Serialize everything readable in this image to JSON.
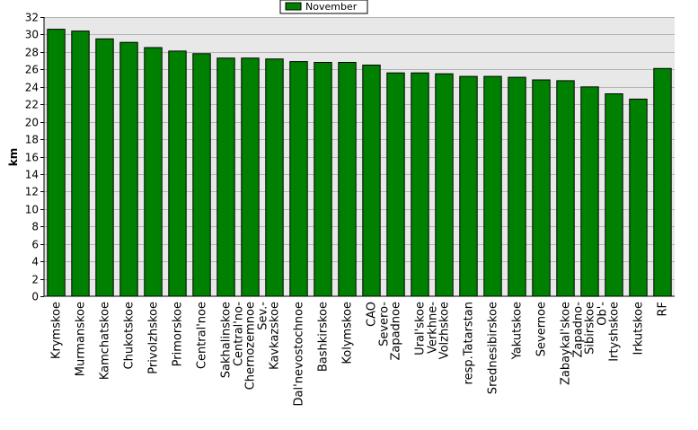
{
  "chart_data": {
    "type": "bar",
    "ylabel": "km",
    "ylim": [
      0,
      32
    ],
    "ytick_step": 2,
    "grid": true,
    "legend_position": "top-center",
    "plot_background": "#e8e8e8",
    "bar_color": "#008000",
    "categories": [
      "Krymskoe",
      "Murmanskoe",
      "Kamchatskoe",
      "Chukotskoe",
      "Privolzhskoe",
      "Primorskoe",
      "Central'noe",
      "Sakhalinskoe",
      "Central'no-Chernozemnoe",
      "Sev.-Kavkazskoe",
      "Dal'nevostochnoe",
      "Bashkirskoe",
      "Kolymskoe",
      "CAO",
      "Severo-Zapadnoe",
      "Ural'skoe",
      "Verkhne-Volzhskoe",
      "resp.Tatarstan",
      "Srednesibirskoe",
      "Yakutskoe",
      "Severnoe",
      "Zabaykal'skoe",
      "Zapadno-Sibirskoe",
      "Ob'-Irtyshskoe",
      "Irkutskoe",
      "RF"
    ],
    "category_lines": [
      [
        "Krymskoe"
      ],
      [
        "Murmanskoe"
      ],
      [
        "Kamchatskoe"
      ],
      [
        "Chukotskoe"
      ],
      [
        "Privolzhskoe"
      ],
      [
        "Primorskoe"
      ],
      [
        "Central'noe"
      ],
      [
        "Sakhalinskoe"
      ],
      [
        "Central'no-",
        "Chernozemnoe"
      ],
      [
        "Sev.-",
        "Kavkazskoe"
      ],
      [
        "Dal'nevostochnoe"
      ],
      [
        "Bashkirskoe"
      ],
      [
        "Kolymskoe"
      ],
      [
        "CAO"
      ],
      [
        "Severo-",
        "Zapadnoe"
      ],
      [
        "Ural'skoe"
      ],
      [
        "Verkhne-",
        "Volzhskoe"
      ],
      [
        "resp.Tatarstan"
      ],
      [
        "Srednesibirskoe"
      ],
      [
        "Yakutskoe"
      ],
      [
        "Severnoe"
      ],
      [
        "Zabaykal'skoe"
      ],
      [
        "Zapadno-",
        "Sibirskoe"
      ],
      [
        "Ob'-",
        "Irtyshskoe"
      ],
      [
        "Irkutskoe"
      ],
      [
        "RF"
      ]
    ],
    "series": [
      {
        "name": "November",
        "color": "#008000",
        "values": [
          30.6,
          30.4,
          29.5,
          29.1,
          28.5,
          28.1,
          27.8,
          27.3,
          27.3,
          27.2,
          26.9,
          26.8,
          26.8,
          26.5,
          25.6,
          25.6,
          25.5,
          25.2,
          25.2,
          25.1,
          24.8,
          24.7,
          24.0,
          23.2,
          22.6,
          26.1
        ]
      }
    ]
  }
}
